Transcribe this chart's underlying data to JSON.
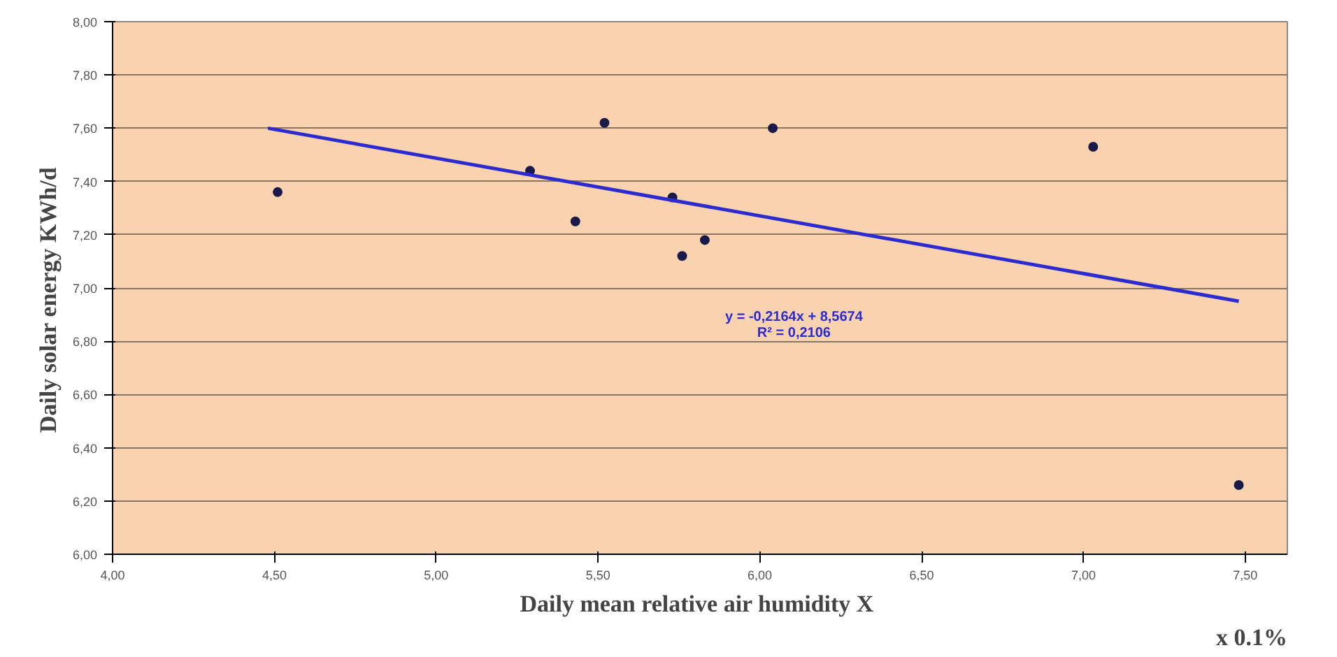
{
  "chart_data": {
    "type": "scatter",
    "xlabel": "Daily mean relative air humidity  X",
    "ylabel": "Daily solar energy     KWh/d",
    "xlim": [
      4.0,
      7.63
    ],
    "ylim": [
      6.0,
      8.0
    ],
    "xticks": [
      {
        "value": 4.0,
        "label": "4,00"
      },
      {
        "value": 4.5,
        "label": "4,50"
      },
      {
        "value": 5.0,
        "label": "5,00"
      },
      {
        "value": 5.5,
        "label": "5,50"
      },
      {
        "value": 6.0,
        "label": "6,00"
      },
      {
        "value": 6.5,
        "label": "6,50"
      },
      {
        "value": 7.0,
        "label": "7,00"
      },
      {
        "value": 7.5,
        "label": "7,50"
      }
    ],
    "yticks": [
      {
        "value": 6.0,
        "label": "6,00"
      },
      {
        "value": 6.2,
        "label": "6,20"
      },
      {
        "value": 6.4,
        "label": "6,40"
      },
      {
        "value": 6.6,
        "label": "6,60"
      },
      {
        "value": 6.8,
        "label": "6,80"
      },
      {
        "value": 7.0,
        "label": "7,00"
      },
      {
        "value": 7.2,
        "label": "7,20"
      },
      {
        "value": 7.4,
        "label": "7,40"
      },
      {
        "value": 7.6,
        "label": "7,60"
      },
      {
        "value": 7.8,
        "label": "7,80"
      },
      {
        "value": 8.0,
        "label": "8,00"
      }
    ],
    "grid": "y",
    "series": [
      {
        "color": "#1a1a4a",
        "x": [
          4.51,
          5.29,
          5.43,
          5.52,
          5.73,
          5.76,
          5.83,
          6.04,
          7.03,
          7.48
        ],
        "values": [
          7.36,
          7.44,
          7.25,
          7.62,
          7.34,
          7.12,
          7.18,
          7.6,
          7.53,
          6.26
        ]
      },
      {
        "type": "line",
        "color": "#2b2bd0",
        "x": [
          4.48,
          7.48
        ],
        "values": [
          7.6,
          6.95
        ]
      }
    ],
    "annotations": [
      "y = -0,2164x + 8,5674",
      "R² = 0,2106",
      "x 0.1%"
    ]
  }
}
